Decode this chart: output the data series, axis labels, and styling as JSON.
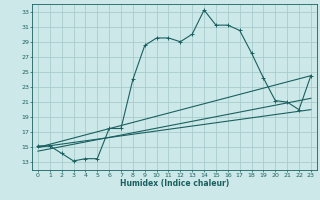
{
  "xlabel": "Humidex (Indice chaleur)",
  "background_color": "#cde8e8",
  "grid_color": "#a8cccc",
  "line_color": "#1a6060",
  "xlim": [
    -0.5,
    23.5
  ],
  "ylim": [
    12,
    34
  ],
  "yticks": [
    13,
    15,
    17,
    19,
    21,
    23,
    25,
    27,
    29,
    31,
    33
  ],
  "xticks": [
    0,
    1,
    2,
    3,
    4,
    5,
    6,
    7,
    8,
    9,
    10,
    11,
    12,
    13,
    14,
    15,
    16,
    17,
    18,
    19,
    20,
    21,
    22,
    23
  ],
  "series1_x": [
    0,
    1,
    2,
    3,
    4,
    5,
    6,
    7,
    8,
    9,
    10,
    11,
    12,
    13,
    14,
    15,
    16,
    17,
    18,
    19,
    20,
    21,
    22,
    23
  ],
  "series1_y": [
    15.2,
    15.2,
    14.2,
    13.2,
    13.5,
    13.5,
    17.5,
    17.5,
    24.0,
    28.5,
    29.5,
    29.5,
    29.0,
    30.0,
    33.2,
    31.2,
    31.2,
    30.5,
    27.5,
    24.2,
    21.2,
    21.0,
    20.0,
    24.5
  ],
  "series2_x": [
    0,
    23
  ],
  "series2_y": [
    15.0,
    24.5
  ],
  "series3_x": [
    0,
    23
  ],
  "series3_y": [
    14.5,
    21.5
  ],
  "series4_x": [
    0,
    23
  ],
  "series4_y": [
    15.0,
    20.0
  ]
}
